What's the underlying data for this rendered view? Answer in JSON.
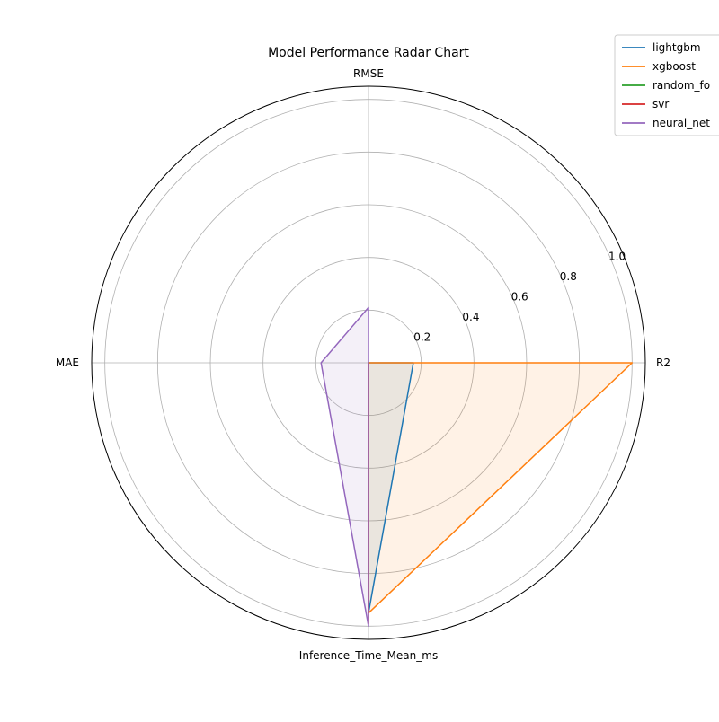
{
  "chart_data": {
    "type": "radar",
    "title": "Model Performance Radar Chart",
    "axes": [
      "R2",
      "RMSE",
      "MAE",
      "Inference_Time_Mean_ms"
    ],
    "rlim": [
      0,
      1.05
    ],
    "radial_ticks": [
      0.2,
      0.4,
      0.6,
      0.8,
      1.0
    ],
    "radial_tick_labels": [
      "0.2",
      "0.4",
      "0.6",
      "0.8",
      "1.0"
    ],
    "grid": true,
    "legend_position": "top-right",
    "series": [
      {
        "name": "lightgbm",
        "color": "#1f77b4",
        "values": [
          0.17,
          0.0,
          0.0,
          0.95
        ]
      },
      {
        "name": "xgboost",
        "color": "#ff7f0e",
        "values": [
          1.0,
          0.0,
          0.0,
          0.95
        ]
      },
      {
        "name": "random_fo",
        "color": "#2ca02c",
        "values": [
          0.0,
          0.0,
          0.0,
          0.0
        ]
      },
      {
        "name": "svr",
        "color": "#d62728",
        "values": [
          0.0,
          0.0,
          0.0,
          0.99
        ]
      },
      {
        "name": "neural_net",
        "color": "#9467bd",
        "values": [
          0.0,
          0.21,
          0.18,
          1.0
        ]
      }
    ]
  }
}
